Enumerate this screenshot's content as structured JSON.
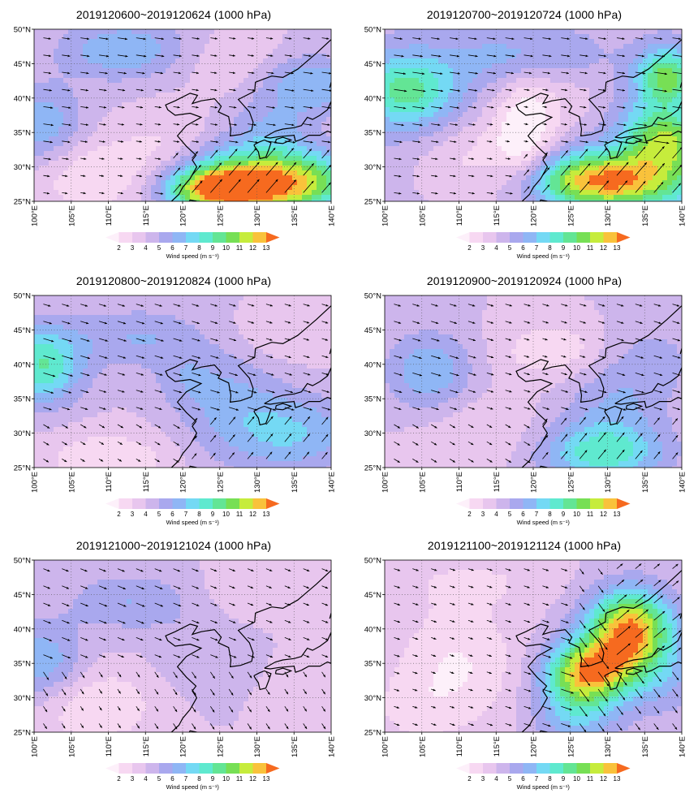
{
  "figure": {
    "panels": [
      {
        "title": "2019120600~2019120624 (1000 hPa)",
        "pattern": "p1"
      },
      {
        "title": "2019120700~2019120724 (1000 hPa)",
        "pattern": "p2"
      },
      {
        "title": "2019120800~2019120824 (1000 hPa)",
        "pattern": "p3"
      },
      {
        "title": "2019120900~2019120924 (1000 hPa)",
        "pattern": "p4"
      },
      {
        "title": "2019121000~2019121024 (1000 hPa)",
        "pattern": "p5"
      },
      {
        "title": "2019121100~2019121124 (1000 hPa)",
        "pattern": "p6"
      }
    ],
    "lat_labels": [
      "50°N",
      "45°N",
      "40°N",
      "35°N",
      "30°N",
      "25°N"
    ],
    "lon_labels": [
      "100°E",
      "105°E",
      "110°E",
      "115°E",
      "120°E",
      "125°E",
      "130°E",
      "135°E",
      "140°E"
    ],
    "colorbar": {
      "label": "Wind speed (m s⁻¹)",
      "ticks": [
        "2",
        "3",
        "4",
        "5",
        "6",
        "7",
        "8",
        "9",
        "10",
        "11",
        "12",
        "13"
      ],
      "colors": [
        "#fdf0fa",
        "#f7d8f2",
        "#e8c6ee",
        "#cdb5ec",
        "#a9a8ee",
        "#8fb6f5",
        "#74d9f4",
        "#5fe9cf",
        "#63e595",
        "#77df55",
        "#c6ec3c",
        "#f9c23b",
        "#f66a1f"
      ]
    }
  }
}
